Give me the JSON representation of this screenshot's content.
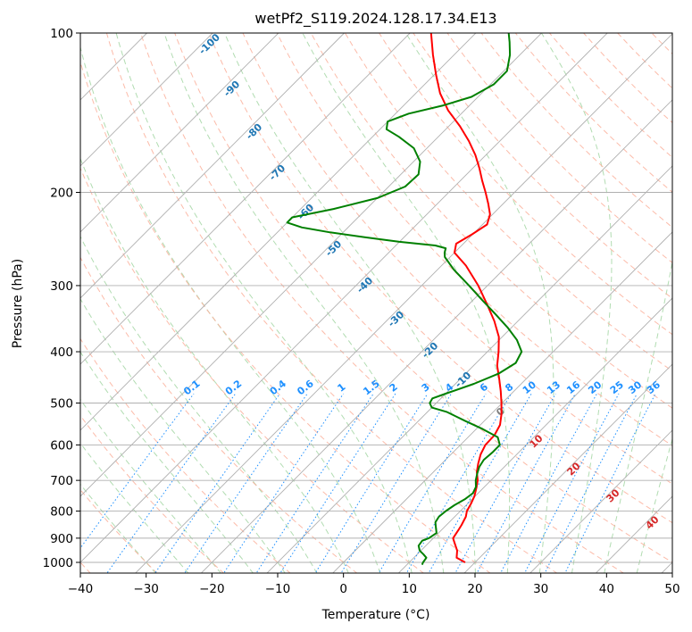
{
  "chart_data": {
    "type": "line",
    "diagram": "skew-T log-P",
    "title": "wetPf2_S119.2024.128.17.34.E13",
    "xlabel": "Temperature (°C)",
    "ylabel": "Pressure (hPa)",
    "xlim": [
      -40,
      50
    ],
    "ylim": [
      1050,
      100
    ],
    "y_scale": "log",
    "x_ticks": [
      -40,
      -30,
      -20,
      -10,
      0,
      10,
      20,
      30,
      40,
      50
    ],
    "x_tick_labels": [
      "−40",
      "−30",
      "−20",
      "−10",
      "0",
      "10",
      "20",
      "30",
      "40",
      "50"
    ],
    "y_ticks": [
      100,
      200,
      300,
      400,
      500,
      600,
      700,
      800,
      900,
      1000
    ],
    "y_tick_labels": [
      "100",
      "200",
      "300",
      "400",
      "500",
      "600",
      "700",
      "800",
      "900",
      "1000"
    ],
    "grid": true,
    "series": [
      {
        "color": "#ff0000",
        "points": [
          [
            1000,
            18.5
          ],
          [
            980,
            16.5
          ],
          [
            950,
            15.5
          ],
          [
            920,
            14.0
          ],
          [
            900,
            13.0
          ],
          [
            870,
            12.6
          ],
          [
            850,
            12.3
          ],
          [
            820,
            11.7
          ],
          [
            800,
            11.0
          ],
          [
            775,
            10.5
          ],
          [
            750,
            9.9
          ],
          [
            725,
            9.0
          ],
          [
            700,
            8.0
          ],
          [
            675,
            6.6
          ],
          [
            650,
            5.5
          ],
          [
            625,
            4.5
          ],
          [
            600,
            3.8
          ],
          [
            575,
            3.7
          ],
          [
            550,
            3.0
          ],
          [
            525,
            1.6
          ],
          [
            500,
            -0.1
          ],
          [
            475,
            -2.0
          ],
          [
            450,
            -4.1
          ],
          [
            425,
            -6.4
          ],
          [
            400,
            -8.3
          ],
          [
            375,
            -10.5
          ],
          [
            350,
            -13.6
          ],
          [
            325,
            -17.3
          ],
          [
            300,
            -21.4
          ],
          [
            275,
            -26.3
          ],
          [
            260,
            -30.0
          ],
          [
            250,
            -31.1
          ],
          [
            240,
            -30.1
          ],
          [
            230,
            -29.3
          ],
          [
            220,
            -30.4
          ],
          [
            210,
            -32.3
          ],
          [
            200,
            -34.4
          ],
          [
            190,
            -36.7
          ],
          [
            180,
            -39.0
          ],
          [
            170,
            -41.6
          ],
          [
            160,
            -44.7
          ],
          [
            150,
            -48.3
          ],
          [
            140,
            -52.5
          ],
          [
            130,
            -56.3
          ],
          [
            120,
            -59.7
          ],
          [
            110,
            -63.2
          ],
          [
            100,
            -66.8
          ]
        ]
      },
      {
        "color": "#008000",
        "points": [
          [
            1010,
            12.3
          ],
          [
            1000,
            12.1
          ],
          [
            980,
            11.9
          ],
          [
            965,
            10.9
          ],
          [
            950,
            9.8
          ],
          [
            930,
            8.9
          ],
          [
            910,
            8.7
          ],
          [
            900,
            9.3
          ],
          [
            880,
            9.7
          ],
          [
            860,
            8.8
          ],
          [
            840,
            7.9
          ],
          [
            820,
            7.6
          ],
          [
            800,
            7.8
          ],
          [
            780,
            8.2
          ],
          [
            760,
            8.9
          ],
          [
            740,
            9.2
          ],
          [
            720,
            8.7
          ],
          [
            700,
            7.7
          ],
          [
            680,
            6.9
          ],
          [
            660,
            6.2
          ],
          [
            640,
            5.8
          ],
          [
            620,
            6.0
          ],
          [
            600,
            6.0
          ],
          [
            580,
            4.5
          ],
          [
            560,
            1.0
          ],
          [
            540,
            -3.0
          ],
          [
            520,
            -7.0
          ],
          [
            510,
            -10.0
          ],
          [
            500,
            -11.0
          ],
          [
            490,
            -11.3
          ],
          [
            480,
            -10.0
          ],
          [
            460,
            -7.2
          ],
          [
            440,
            -5.0
          ],
          [
            420,
            -4.0
          ],
          [
            400,
            -4.8
          ],
          [
            380,
            -7.3
          ],
          [
            360,
            -10.6
          ],
          [
            340,
            -14.4
          ],
          [
            320,
            -18.5
          ],
          [
            300,
            -22.8
          ],
          [
            280,
            -27.5
          ],
          [
            265,
            -30.8
          ],
          [
            260,
            -31.5
          ],
          [
            255,
            -32.0
          ],
          [
            252,
            -34.0
          ],
          [
            248,
            -40.0
          ],
          [
            243,
            -46.0
          ],
          [
            238,
            -52.0
          ],
          [
            233,
            -57.0
          ],
          [
            228,
            -60.0
          ],
          [
            223,
            -60.0
          ],
          [
            215,
            -55.0
          ],
          [
            205,
            -50.0
          ],
          [
            195,
            -47.5
          ],
          [
            185,
            -47.3
          ],
          [
            175,
            -49.0
          ],
          [
            165,
            -52.0
          ],
          [
            157,
            -56.0
          ],
          [
            152,
            -59.0
          ],
          [
            147,
            -60.0
          ],
          [
            142,
            -58.0
          ],
          [
            137,
            -54.0
          ],
          [
            132,
            -51.0
          ],
          [
            125,
            -49.5
          ],
          [
            118,
            -49.5
          ],
          [
            110,
            -51.5
          ],
          [
            104,
            -53.5
          ],
          [
            100,
            -55.0
          ]
        ]
      }
    ],
    "mixing_ratio_labels": [
      "0.1",
      "0.2",
      "0.4",
      "0.6",
      "1",
      "1.5",
      "2",
      "3",
      "4",
      "6",
      "8",
      "10",
      "13",
      "16",
      "20",
      "25",
      "30",
      "36"
    ],
    "moist_adiabat_labels": [
      "-100",
      "-90",
      "-80",
      "-70",
      "-60",
      "-50",
      "-40",
      "-30",
      "-20",
      "-10",
      "0",
      "10",
      "20",
      "30",
      "40"
    ],
    "colors": {
      "temperature": "#ff0000",
      "dewpoint": "#008000",
      "isotherm": "#b0b0b0",
      "dry_adiabat": "#fcaf9a",
      "moist_adiabat": "#a8d8a8",
      "mixing_ratio": "#1e90ff",
      "adiabat_label_blue": "#1f77b4",
      "adiabat_label_red": "#d62728",
      "adiabat_label_gray": "#7f7f7f"
    }
  }
}
